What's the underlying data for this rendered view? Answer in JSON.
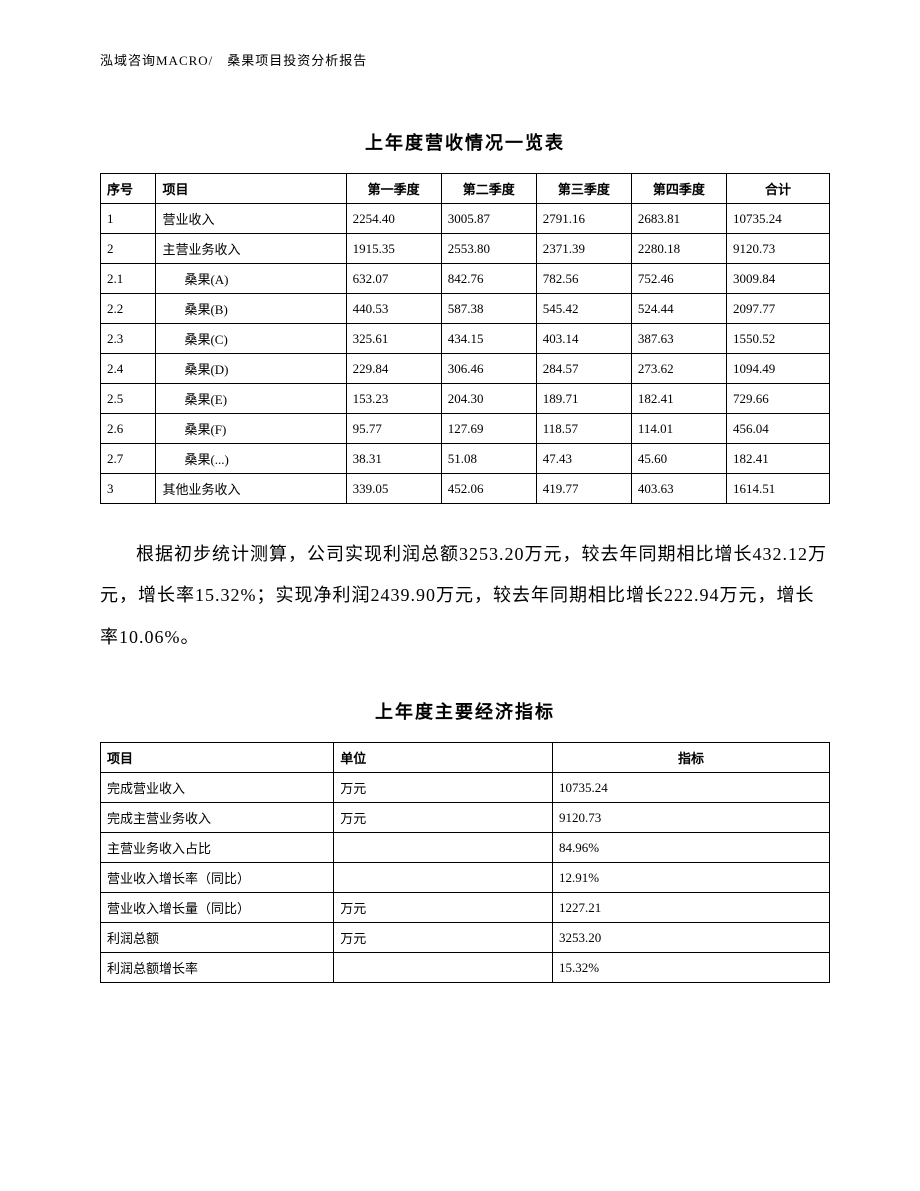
{
  "header": "泓域咨询MACRO/　桑果项目投资分析报告",
  "table1": {
    "title": "上年度营收情况一览表",
    "columns": [
      "序号",
      "项目",
      "第一季度",
      "第二季度",
      "第三季度",
      "第四季度",
      "合计"
    ],
    "rows": [
      {
        "seq": "1",
        "item": "营业收入",
        "indent": false,
        "q1": "2254.40",
        "q2": "3005.87",
        "q3": "2791.16",
        "q4": "2683.81",
        "total": "10735.24"
      },
      {
        "seq": "2",
        "item": "主营业务收入",
        "indent": false,
        "q1": "1915.35",
        "q2": "2553.80",
        "q3": "2371.39",
        "q4": "2280.18",
        "total": "9120.73"
      },
      {
        "seq": "2.1",
        "item": "桑果(A)",
        "indent": true,
        "q1": "632.07",
        "q2": "842.76",
        "q3": "782.56",
        "q4": "752.46",
        "total": "3009.84"
      },
      {
        "seq": "2.2",
        "item": "桑果(B)",
        "indent": true,
        "q1": "440.53",
        "q2": "587.38",
        "q3": "545.42",
        "q4": "524.44",
        "total": "2097.77"
      },
      {
        "seq": "2.3",
        "item": "桑果(C)",
        "indent": true,
        "q1": "325.61",
        "q2": "434.15",
        "q3": "403.14",
        "q4": "387.63",
        "total": "1550.52"
      },
      {
        "seq": "2.4",
        "item": "桑果(D)",
        "indent": true,
        "q1": "229.84",
        "q2": "306.46",
        "q3": "284.57",
        "q4": "273.62",
        "total": "1094.49"
      },
      {
        "seq": "2.5",
        "item": "桑果(E)",
        "indent": true,
        "q1": "153.23",
        "q2": "204.30",
        "q3": "189.71",
        "q4": "182.41",
        "total": "729.66"
      },
      {
        "seq": "2.6",
        "item": "桑果(F)",
        "indent": true,
        "q1": "95.77",
        "q2": "127.69",
        "q3": "118.57",
        "q4": "114.01",
        "total": "456.04"
      },
      {
        "seq": "2.7",
        "item": "桑果(...)",
        "indent": true,
        "q1": "38.31",
        "q2": "51.08",
        "q3": "47.43",
        "q4": "45.60",
        "total": "182.41"
      },
      {
        "seq": "3",
        "item": "其他业务收入",
        "indent": false,
        "q1": "339.05",
        "q2": "452.06",
        "q3": "419.77",
        "q4": "403.63",
        "total": "1614.51"
      }
    ]
  },
  "paragraph": "根据初步统计测算，公司实现利润总额3253.20万元，较去年同期相比增长432.12万元，增长率15.32%；实现净利润2439.90万元，较去年同期相比增长222.94万元，增长率10.06%。",
  "table2": {
    "title": "上年度主要经济指标",
    "columns": [
      "项目",
      "单位",
      "指标"
    ],
    "rows": [
      {
        "item": "完成营业收入",
        "unit": "万元",
        "val": "10735.24"
      },
      {
        "item": "完成主营业务收入",
        "unit": "万元",
        "val": "9120.73"
      },
      {
        "item": "主营业务收入占比",
        "unit": "",
        "val": "84.96%"
      },
      {
        "item": "营业收入增长率（同比）",
        "unit": "",
        "val": "12.91%"
      },
      {
        "item": "营业收入增长量（同比）",
        "unit": "万元",
        "val": "1227.21"
      },
      {
        "item": "利润总额",
        "unit": "万元",
        "val": "3253.20"
      },
      {
        "item": "利润总额增长率",
        "unit": "",
        "val": "15.32%"
      }
    ]
  }
}
